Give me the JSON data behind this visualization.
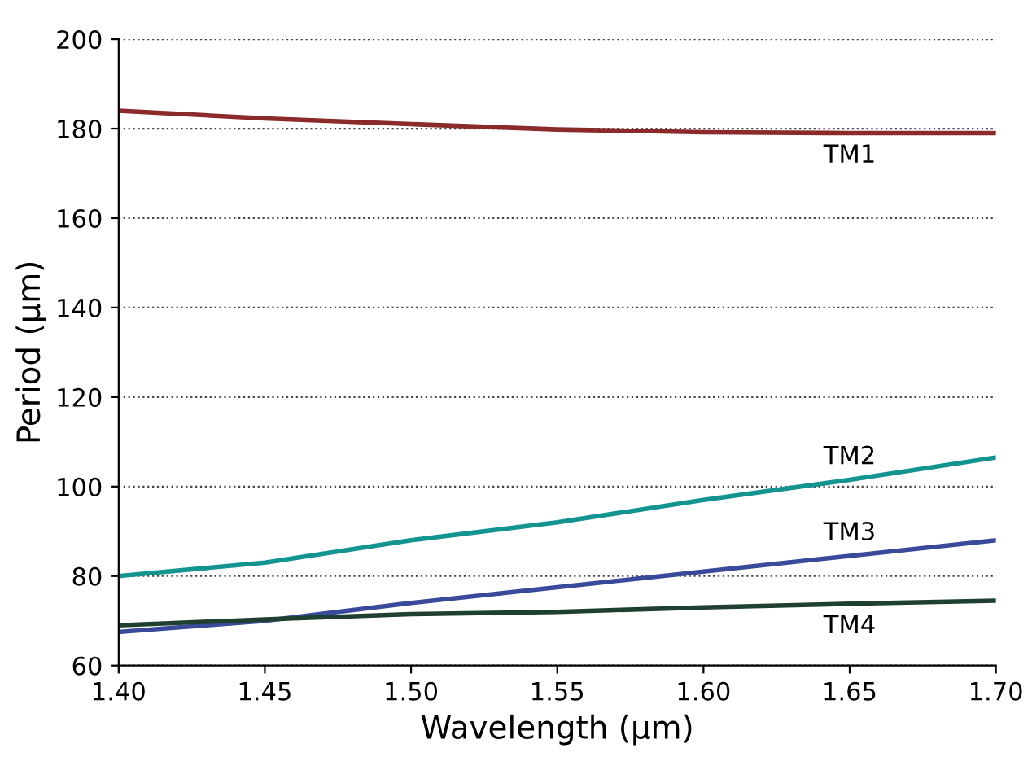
{
  "chart_data": {
    "type": "line",
    "xlabel": "Wavelength (µm)",
    "ylabel": "Period (µm)",
    "xlim": [
      1.4,
      1.7
    ],
    "ylim": [
      60,
      200
    ],
    "xticks": [
      {
        "value": 1.4,
        "label": "1.40"
      },
      {
        "value": 1.45,
        "label": "1.45"
      },
      {
        "value": 1.5,
        "label": "1.50"
      },
      {
        "value": 1.55,
        "label": "1.55"
      },
      {
        "value": 1.6,
        "label": "1.60"
      },
      {
        "value": 1.65,
        "label": "1.65"
      },
      {
        "value": 1.7,
        "label": "1.70"
      }
    ],
    "yticks": [
      60,
      80,
      100,
      120,
      140,
      160,
      180,
      200
    ],
    "grid": "y",
    "line_style": "solid",
    "x": [
      1.4,
      1.45,
      1.5,
      1.55,
      1.6,
      1.65,
      1.7
    ],
    "series": [
      {
        "name": "TM1",
        "color": "#8b2a2a",
        "values": [
          184,
          182.3,
          181,
          179.8,
          179.2,
          179,
          179
        ]
      },
      {
        "name": "TM2",
        "color": "#149490",
        "values": [
          80,
          83,
          88,
          92,
          97,
          101.5,
          106.5
        ]
      },
      {
        "name": "TM3",
        "color": "#3a4a9a",
        "values": [
          67.5,
          70,
          74,
          77.5,
          81,
          84.5,
          88
        ]
      },
      {
        "name": "TM4",
        "color": "#1f3f2f",
        "values": [
          69,
          70.3,
          71.5,
          72,
          73,
          73.8,
          74.5
        ]
      }
    ]
  }
}
